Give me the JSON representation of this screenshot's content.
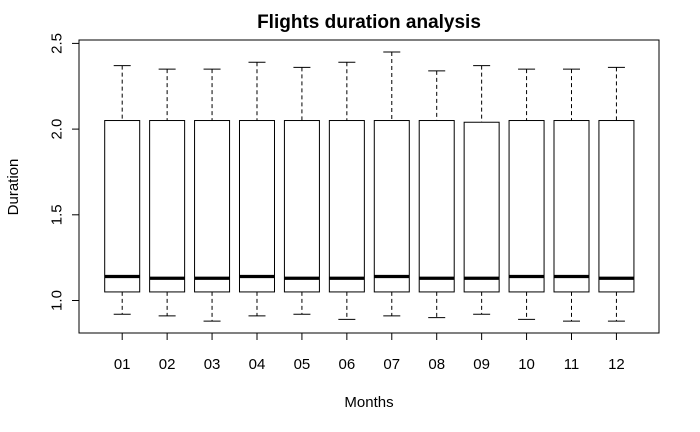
{
  "chart_data": {
    "type": "box",
    "title": "Flights duration analysis",
    "xlabel": "Months",
    "ylabel": "Duration",
    "ylim": [
      0.8,
      2.5
    ],
    "yticks": [
      "1.0",
      "1.5",
      "2.0",
      "2.5"
    ],
    "ytick_values": [
      1.0,
      1.5,
      2.0,
      2.5
    ],
    "grid": false,
    "categories": [
      "01",
      "02",
      "03",
      "04",
      "05",
      "06",
      "07",
      "08",
      "09",
      "10",
      "11",
      "12"
    ],
    "boxes": [
      {
        "min": 0.92,
        "q1": 1.05,
        "median": 1.14,
        "q3": 2.05,
        "max": 2.37
      },
      {
        "min": 0.91,
        "q1": 1.05,
        "median": 1.13,
        "q3": 2.05,
        "max": 2.35
      },
      {
        "min": 0.88,
        "q1": 1.05,
        "median": 1.13,
        "q3": 2.05,
        "max": 2.35
      },
      {
        "min": 0.91,
        "q1": 1.05,
        "median": 1.14,
        "q3": 2.05,
        "max": 2.39
      },
      {
        "min": 0.92,
        "q1": 1.05,
        "median": 1.13,
        "q3": 2.05,
        "max": 2.36
      },
      {
        "min": 0.89,
        "q1": 1.05,
        "median": 1.13,
        "q3": 2.05,
        "max": 2.39
      },
      {
        "min": 0.91,
        "q1": 1.05,
        "median": 1.14,
        "q3": 2.05,
        "max": 2.45
      },
      {
        "min": 0.9,
        "q1": 1.05,
        "median": 1.13,
        "q3": 2.05,
        "max": 2.34
      },
      {
        "min": 0.92,
        "q1": 1.05,
        "median": 1.13,
        "q3": 2.04,
        "max": 2.37
      },
      {
        "min": 0.89,
        "q1": 1.05,
        "median": 1.14,
        "q3": 2.05,
        "max": 2.35
      },
      {
        "min": 0.88,
        "q1": 1.05,
        "median": 1.14,
        "q3": 2.05,
        "max": 2.35
      },
      {
        "min": 0.88,
        "q1": 1.05,
        "median": 1.13,
        "q3": 2.05,
        "max": 2.36
      }
    ]
  }
}
